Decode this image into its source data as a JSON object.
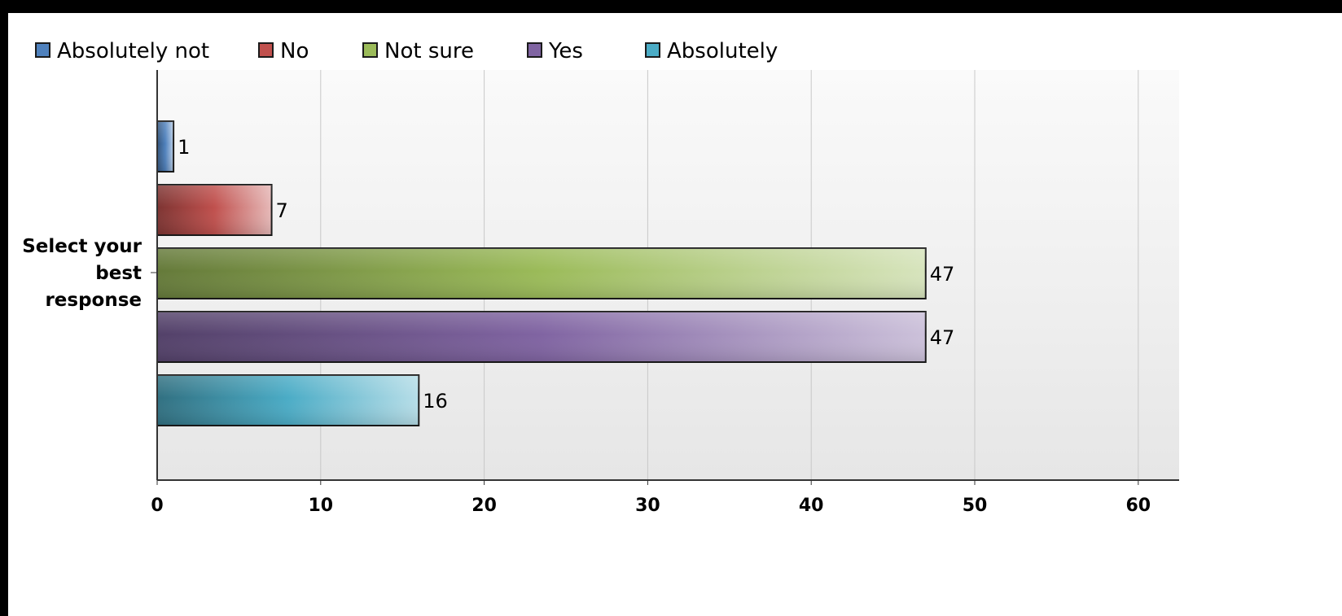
{
  "chart_data": {
    "type": "bar",
    "orientation": "horizontal",
    "categories": [
      "Select your best response"
    ],
    "category_lines": [
      "Select your",
      "best",
      "response"
    ],
    "series": [
      {
        "name": "Absolutely not",
        "values": [
          1
        ],
        "color": "#4f81bd"
      },
      {
        "name": "No",
        "values": [
          7
        ],
        "color": "#c0504d"
      },
      {
        "name": "Not sure",
        "values": [
          47
        ],
        "color": "#9bbb59"
      },
      {
        "name": "Yes",
        "values": [
          47
        ],
        "color": "#8064a2"
      },
      {
        "name": "Absolutely",
        "values": [
          16
        ],
        "color": "#4bacc6"
      }
    ],
    "xticks": [
      0,
      10,
      20,
      30,
      40,
      50,
      60
    ],
    "xlim": [
      0,
      62.5
    ],
    "title": "",
    "xlabel": "",
    "ylabel": "",
    "legend_position": "top-left",
    "grid": true,
    "data_labels": true
  },
  "colors": {
    "background_frame": "#000000",
    "plot_background_top": "#fafafa",
    "plot_background_bottom": "#e6e6e6",
    "gridline": "#c8c8c8",
    "axis": "#333333"
  }
}
